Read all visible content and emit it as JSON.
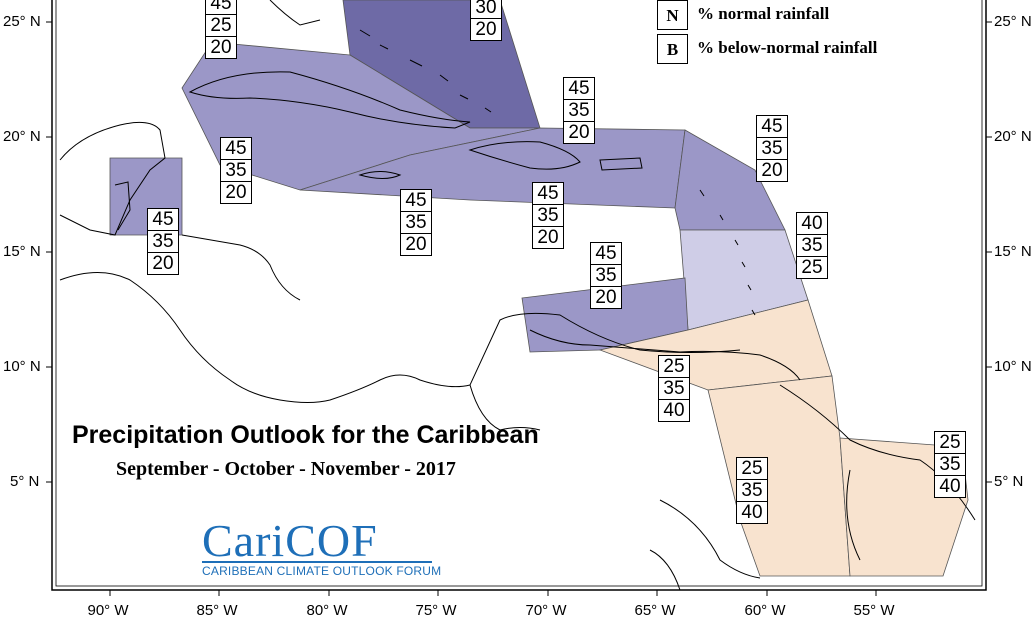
{
  "title": "Precipitation Outlook for the Caribbean",
  "subtitle": "September - October - November - 2017",
  "legend": [
    {
      "key": "N",
      "text": "% normal rainfall"
    },
    {
      "key": "B",
      "text": "% below-normal rainfall"
    }
  ],
  "logo": {
    "name": "CariCOF",
    "tagline": "CARIBBEAN CLIMATE OUTLOOK FORUM"
  },
  "lat_labels": [
    "25° N",
    "20° N",
    "15° N",
    "10° N",
    "5° N"
  ],
  "lon_labels": [
    "90° W",
    "85° W",
    "80° W",
    "75° W",
    "70° W",
    "65° W",
    "60° W",
    "55° W"
  ],
  "colors": {
    "above_normal_dark": "#6e6aa6",
    "above_normal": "#9b97c7",
    "above_normal_light": "#cfcde7",
    "below_normal": "#f8e3cf",
    "coastline": "#000000",
    "logo_blue": "#1e6fb8"
  },
  "regions": [
    {
      "id": "bahamas-north",
      "values": [
        "45",
        "25",
        "20"
      ]
    },
    {
      "id": "bahamas-east",
      "values": [
        "30",
        "20"
      ]
    },
    {
      "id": "cuba-bahamas",
      "values": [
        "45",
        "35",
        "20"
      ]
    },
    {
      "id": "western-caribbean",
      "values": [
        "45",
        "35",
        "20"
      ]
    },
    {
      "id": "belize",
      "values": [
        "45",
        "35",
        "20"
      ]
    },
    {
      "id": "jamaica-region",
      "values": [
        "45",
        "35",
        "20"
      ]
    },
    {
      "id": "hispaniola",
      "values": [
        "45",
        "35",
        "20"
      ]
    },
    {
      "id": "leeward-islands",
      "values": [
        "45",
        "35",
        "20"
      ]
    },
    {
      "id": "windward-islands",
      "values": [
        "40",
        "35",
        "25"
      ]
    },
    {
      "id": "abc-islands",
      "values": [
        "45",
        "35",
        "20"
      ]
    },
    {
      "id": "trinidad-venezuela",
      "values": [
        "25",
        "35",
        "40"
      ]
    },
    {
      "id": "guyana",
      "values": [
        "25",
        "35",
        "40"
      ]
    },
    {
      "id": "french-guiana",
      "values": [
        "25",
        "35",
        "40"
      ]
    }
  ]
}
